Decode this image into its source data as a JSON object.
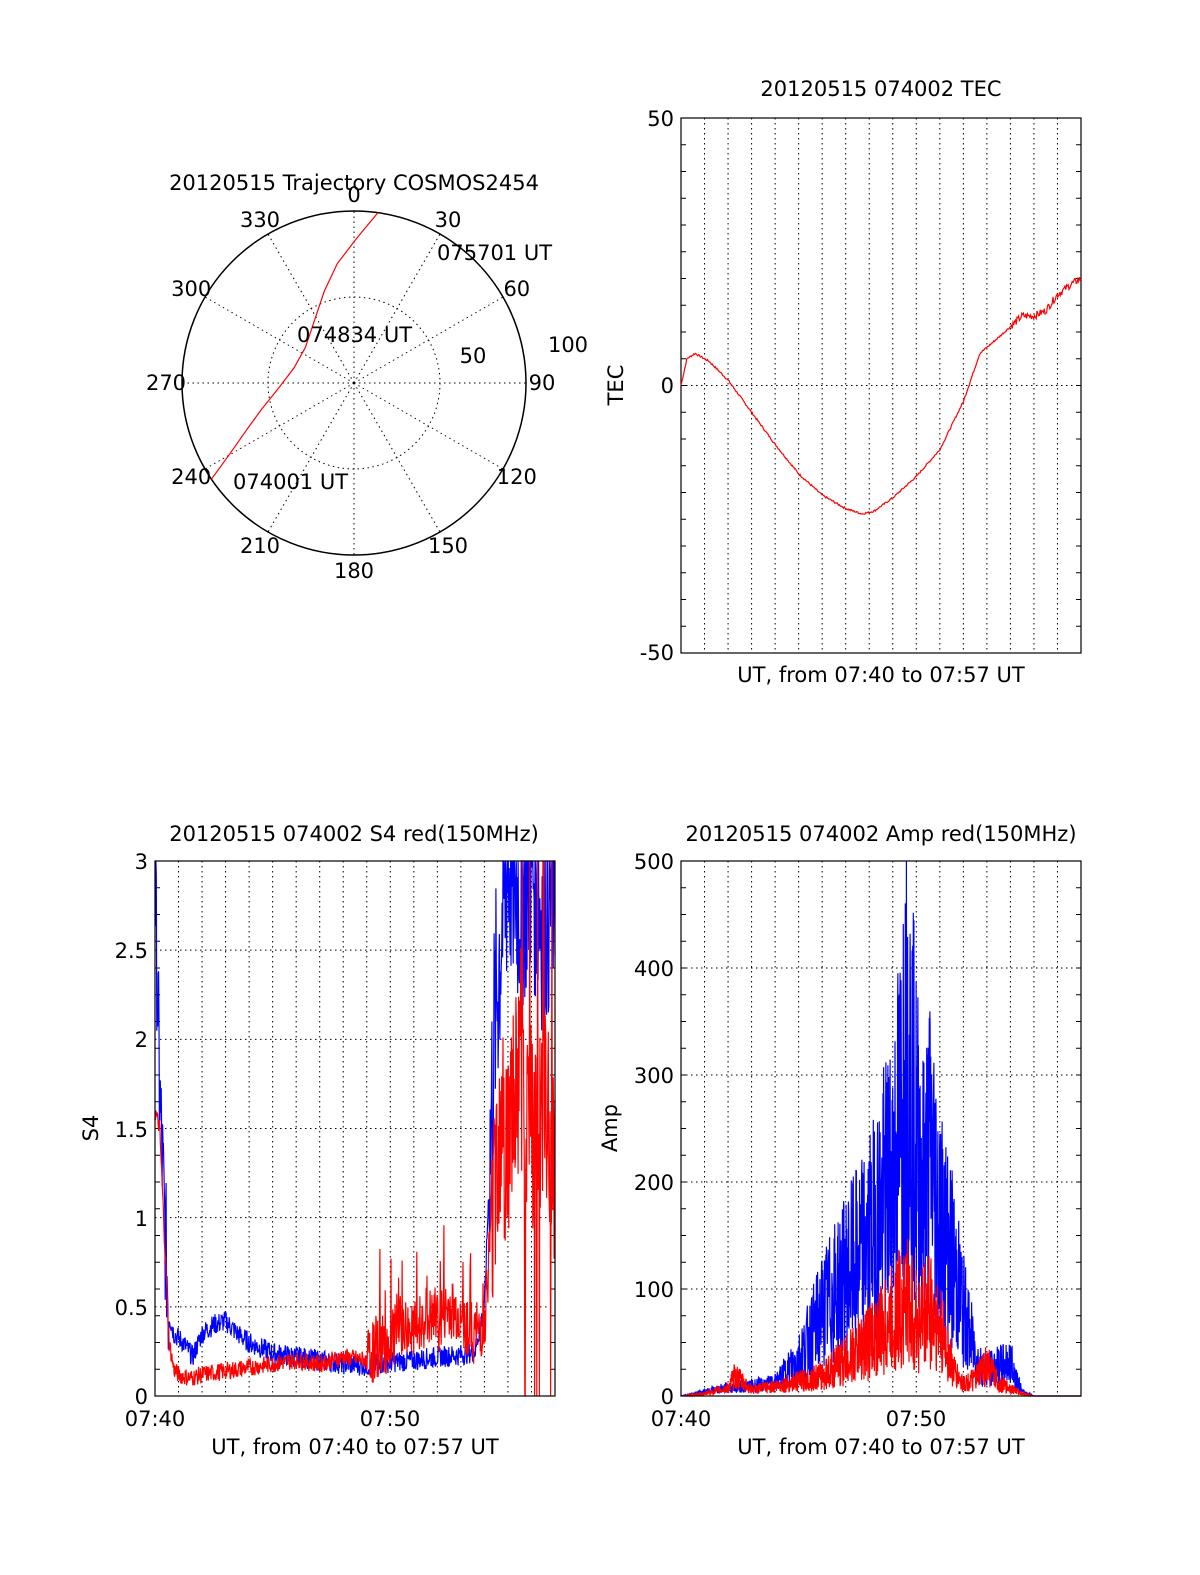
{
  "chart_data": [
    {
      "type": "polar",
      "title": "20120515 Trajectory COSMOS2454",
      "azimuth_labels": [
        "0",
        "30",
        "60",
        "90",
        "120",
        "150",
        "180",
        "210",
        "240",
        "270",
        "300",
        "330"
      ],
      "radial_labels": [
        "50",
        "100"
      ],
      "series": [
        {
          "color": "#ff0000",
          "points": [
            {
              "az": 236,
              "r": 100
            },
            {
              "az": 240,
              "r": 84
            },
            {
              "az": 246,
              "r": 69
            },
            {
              "az": 254,
              "r": 56
            },
            {
              "az": 266,
              "r": 44
            },
            {
              "az": 284,
              "r": 36
            },
            {
              "az": 306,
              "r": 35
            },
            {
              "az": 326,
              "r": 42
            },
            {
              "az": 342,
              "r": 56
            },
            {
              "az": 352,
              "r": 70
            },
            {
              "az": 1,
              "r": 84
            },
            {
              "az": 8,
              "r": 100
            }
          ]
        }
      ],
      "annotations": [
        {
          "text": "075701 UT",
          "az": 15,
          "r": 100
        },
        {
          "text": "074834 UT",
          "az": 320,
          "r": 35
        },
        {
          "text": "074001 UT",
          "az": 236,
          "r": 100
        }
      ]
    },
    {
      "type": "line",
      "title": "20120515 074002 TEC",
      "xlabel": "UT, from 07:40 to 07:57 UT",
      "ylabel": "TEC",
      "xlim": [
        0,
        17
      ],
      "ylim": [
        -50,
        50
      ],
      "yticks": [
        "50",
        "0",
        "-50"
      ],
      "grid": true,
      "series": [
        {
          "color": "#ff0000",
          "x": [
            0,
            0.25,
            0.6,
            1.2,
            2.0,
            3.0,
            4.0,
            5.0,
            6.0,
            7.0,
            7.7,
            8.2,
            9.0,
            10.0,
            11.0,
            12.0,
            12.7,
            13.5,
            14.0,
            14.5,
            15.0,
            15.5,
            16.0,
            16.6,
            17.0
          ],
          "y": [
            0,
            5,
            6,
            4.5,
            1,
            -5,
            -11,
            -16.5,
            -20.5,
            -23,
            -24,
            -23.5,
            -21,
            -17,
            -12,
            -3,
            6,
            9,
            11,
            13,
            13,
            14,
            17,
            19,
            20
          ]
        }
      ]
    },
    {
      "type": "line",
      "title": "20120515 074002 S4 red(150MHz)",
      "xlabel": "UT, from 07:40 to 07:57 UT",
      "ylabel": "S4",
      "xticks": [
        "07:40",
        "07:50"
      ],
      "yticks": [
        "0",
        "0.5",
        "1",
        "1.5",
        "2",
        "2.5",
        "3"
      ],
      "xlim": [
        0,
        17
      ],
      "ylim": [
        0,
        3
      ],
      "grid": true,
      "series": [
        {
          "color": "#0000ff",
          "x": [
            0,
            0.2,
            0.4,
            0.6,
            0.8,
            1.2,
            1.6,
            2.0,
            2.5,
            3.0,
            3.5,
            4.0,
            5.0,
            6.0,
            7.0,
            8.0,
            9.0,
            10.0,
            11.0,
            12.0,
            13.0,
            13.6,
            14.0,
            14.2,
            14.4,
            14.7,
            15.0,
            15.5,
            16.0,
            16.5,
            17.0
          ],
          "y": [
            2.9,
            1.7,
            1.0,
            0.45,
            0.35,
            0.3,
            0.22,
            0.35,
            0.4,
            0.42,
            0.35,
            0.3,
            0.24,
            0.22,
            0.2,
            0.18,
            0.17,
            0.19,
            0.2,
            0.22,
            0.23,
            0.25,
            0.5,
            1.2,
            2.0,
            2.6,
            3.0,
            2.8,
            3.0,
            2.7,
            2.9
          ]
        },
        {
          "color": "#ff0000",
          "x": [
            0,
            0.2,
            0.4,
            0.6,
            0.8,
            1.0,
            1.5,
            2.0,
            3.0,
            4.0,
            5.0,
            6.0,
            7.0,
            8.0,
            9.0,
            9.5,
            10.0,
            10.5,
            11.0,
            11.5,
            12.0,
            12.5,
            13.0,
            13.5,
            14.0,
            14.3,
            14.6,
            15.0,
            15.5,
            16.0,
            16.5,
            17.0
          ],
          "y": [
            1.6,
            1.5,
            0.9,
            0.3,
            0.15,
            0.12,
            0.1,
            0.12,
            0.14,
            0.16,
            0.18,
            0.2,
            0.18,
            0.22,
            0.2,
            0.28,
            0.3,
            0.4,
            0.35,
            0.45,
            0.4,
            0.5,
            0.45,
            0.35,
            0.4,
            1.0,
            1.5,
            1.4,
            1.8,
            1.5,
            1.6,
            1.3
          ]
        }
      ]
    },
    {
      "type": "line",
      "title": "20120515 074002 Amp red(150MHz)",
      "xlabel": "UT, from 07:40 to 07:57 UT",
      "ylabel": "Amp",
      "xticks": [
        "07:40",
        "07:50"
      ],
      "yticks": [
        "0",
        "100",
        "200",
        "300",
        "400",
        "500"
      ],
      "xlim": [
        0,
        17
      ],
      "ylim": [
        0,
        500
      ],
      "grid": true,
      "series": [
        {
          "color": "#0000ff",
          "x": [
            0,
            1,
            2,
            3,
            4,
            4.5,
            5,
            5.5,
            6,
            6.5,
            7,
            7.5,
            8,
            8.5,
            9,
            9.3,
            9.6,
            10,
            10.3,
            10.6,
            11,
            11.3,
            11.6,
            12,
            12.3,
            12.6,
            13,
            13.5,
            14,
            14.5,
            15,
            16,
            17
          ],
          "y": [
            0,
            5,
            10,
            12,
            15,
            30,
            45,
            70,
            100,
            120,
            140,
            160,
            180,
            220,
            260,
            320,
            420,
            300,
            240,
            290,
            210,
            180,
            150,
            100,
            70,
            40,
            30,
            35,
            40,
            5,
            0,
            0,
            0
          ]
        },
        {
          "color": "#ff0000",
          "x": [
            0,
            1,
            2,
            2.3,
            3,
            4,
            5,
            6,
            6.5,
            7,
            7.5,
            8,
            8.5,
            9,
            9.3,
            9.6,
            10,
            10.3,
            10.6,
            11,
            11.3,
            11.6,
            12,
            12.5,
            13,
            13.5,
            14,
            14.5,
            15,
            16,
            17
          ],
          "y": [
            0,
            3,
            10,
            25,
            8,
            12,
            18,
            25,
            35,
            45,
            55,
            70,
            80,
            95,
            110,
            120,
            90,
            100,
            110,
            80,
            60,
            30,
            15,
            20,
            40,
            15,
            10,
            3,
            0,
            0,
            0
          ]
        }
      ]
    }
  ]
}
